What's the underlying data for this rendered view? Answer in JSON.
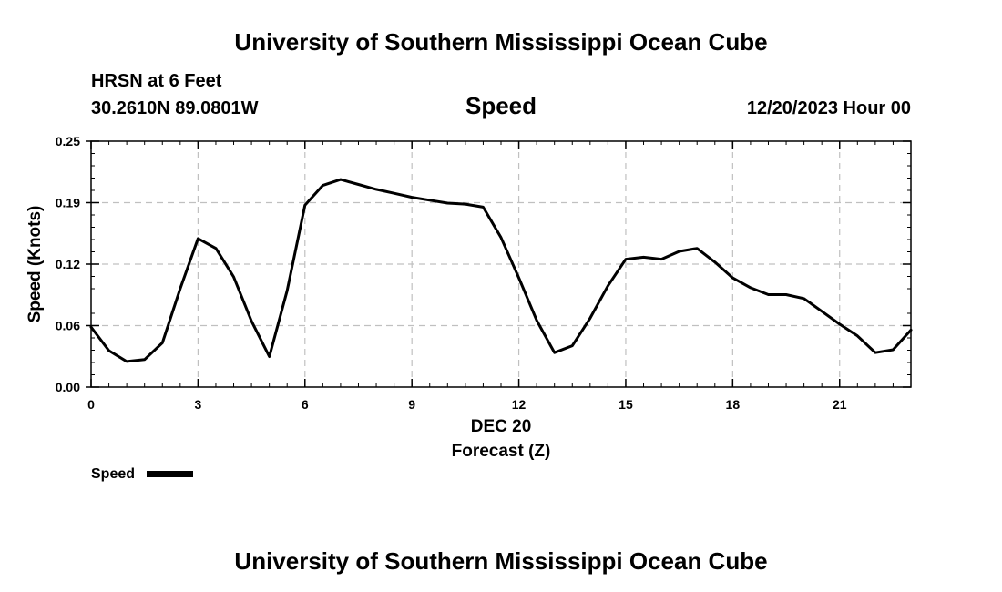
{
  "chart_data": {
    "type": "line",
    "title": "University of Southern Mississippi Ocean Cube",
    "footer_title": "University of Southern Mississippi Ocean Cube",
    "station": "HRSN at 6 Feet",
    "location": "30.2610N  89.0801W",
    "variable": "Speed",
    "datetime": "12/20/2023 Hour 00",
    "xlabel_date": "DEC 20",
    "xlabel": "Forecast (Z)",
    "ylabel": "Speed (Knots)",
    "xlim": [
      0,
      23
    ],
    "ylim": [
      0,
      0.25
    ],
    "x_ticks": [
      0,
      3,
      6,
      9,
      12,
      15,
      18,
      21
    ],
    "x_tick_labels": [
      "0",
      "3",
      "6",
      "9",
      "12",
      "15",
      "18",
      "21"
    ],
    "y_ticks": [
      0,
      0.0625,
      0.125,
      0.1875,
      0.25
    ],
    "y_tick_labels": [
      "0.00",
      "0.06",
      "0.12",
      "0.19",
      "0.25"
    ],
    "grid": true,
    "legend": "bottom-left",
    "series": [
      {
        "name": "Speed",
        "color": "#000000",
        "x": [
          0,
          0.5,
          1,
          1.5,
          2,
          2.5,
          3,
          3.5,
          4,
          4.5,
          5,
          5.5,
          6,
          6.5,
          7,
          7.5,
          8,
          8.5,
          9,
          9.5,
          10,
          10.5,
          11,
          11.5,
          12,
          12.5,
          13,
          13.5,
          14,
          14.5,
          15,
          15.5,
          16,
          16.5,
          17,
          17.5,
          18,
          18.5,
          19,
          19.5,
          20,
          20.5,
          21,
          21.5,
          22,
          22.5,
          23
        ],
        "values": [
          0.061,
          0.037,
          0.026,
          0.028,
          0.045,
          0.1,
          0.151,
          0.141,
          0.112,
          0.067,
          0.031,
          0.098,
          0.185,
          0.205,
          0.211,
          0.206,
          0.201,
          0.197,
          0.193,
          0.19,
          0.187,
          0.186,
          0.183,
          0.152,
          0.111,
          0.068,
          0.035,
          0.042,
          0.07,
          0.103,
          0.13,
          0.132,
          0.13,
          0.138,
          0.141,
          0.127,
          0.111,
          0.101,
          0.094,
          0.094,
          0.09,
          0.077,
          0.064,
          0.052,
          0.035,
          0.038,
          0.058
        ]
      }
    ]
  }
}
